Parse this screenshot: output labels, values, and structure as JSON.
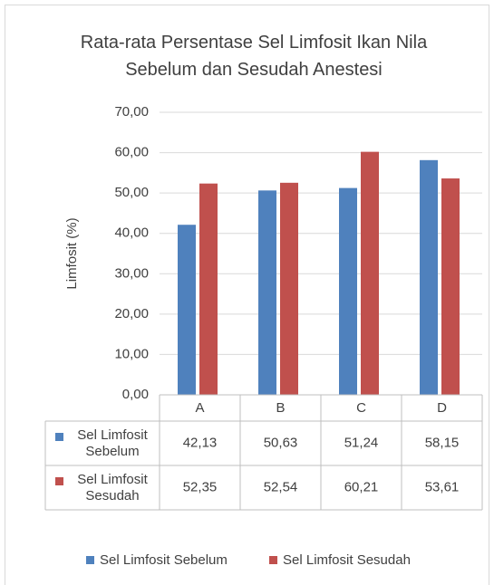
{
  "chart_data": {
    "type": "bar",
    "title": "Rata-rata Persentase Sel Limfosit Ikan Nila Sebelum dan Sesudah Anestesi",
    "y_label": "Limfosit (%)",
    "categories": [
      "A",
      "B",
      "C",
      "D"
    ],
    "series": [
      {
        "name": "Sel Limfosit Sebelum",
        "color": "#4f81bd",
        "values": [
          42.13,
          50.63,
          51.24,
          58.15
        ],
        "value_labels": [
          "42,13",
          "50,63",
          "51,24",
          "58,15"
        ]
      },
      {
        "name": "Sel Limfosit Sesudah",
        "color": "#c0504d",
        "values": [
          52.35,
          52.54,
          60.21,
          53.61
        ],
        "value_labels": [
          "52,35",
          "52,54",
          "60,21",
          "53,61"
        ]
      }
    ],
    "ylim": [
      0,
      70
    ],
    "yticks": [
      {
        "value": 0,
        "label": "0,00"
      },
      {
        "value": 10,
        "label": "10,00"
      },
      {
        "value": 20,
        "label": "20,00"
      },
      {
        "value": 30,
        "label": "30,00"
      },
      {
        "value": 40,
        "label": "40,00"
      },
      {
        "value": 50,
        "label": "50,00"
      },
      {
        "value": 60,
        "label": "60,00"
      },
      {
        "value": 70,
        "label": "70,00"
      }
    ],
    "grid": true,
    "legend": "bottom",
    "data_table": true
  }
}
